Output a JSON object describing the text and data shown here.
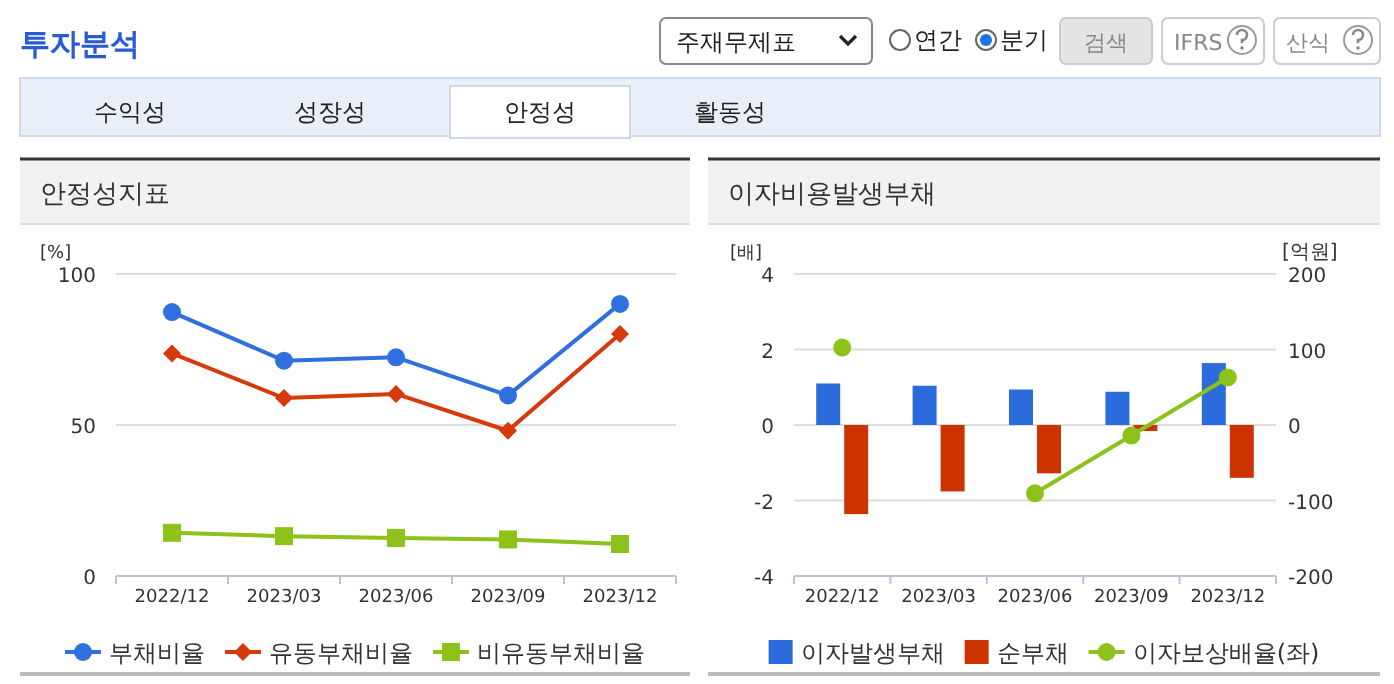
{
  "chart_data": [
    {
      "type": "other",
      "title": "투자분석",
      "annotations": [
        "주재무제표",
        "연간",
        "분기",
        "검색",
        "IFRS",
        "산식",
        "수익성",
        "성장성",
        "안정성",
        "활동성"
      ]
    },
    {
      "type": "line",
      "title": "안정성지표",
      "ylabel": "[%]",
      "categories": [
        "2022/12",
        "2023/03",
        "2023/06",
        "2023/09",
        "2023/12"
      ],
      "ylim": [
        0,
        100
      ],
      "yticks": [
        0,
        50,
        100
      ],
      "grid": "y",
      "legend": "bottom",
      "series": [
        {
          "name": "부채비율",
          "color": "#2f6fde",
          "marker": "circle",
          "values": [
            87.4,
            71.3,
            72.4,
            59.8,
            90.1
          ]
        },
        {
          "name": "유동부채비율",
          "color": "#d63a0a",
          "marker": "diamond",
          "values": [
            73.7,
            58.9,
            60.3,
            48.1,
            80.1
          ]
        },
        {
          "name": "비유동부채비율",
          "color": "#8cc21a",
          "marker": "square",
          "values": [
            14.3,
            13.2,
            12.6,
            12.1,
            10.6
          ]
        }
      ]
    },
    {
      "type": "bar",
      "title": "이자비용발생부채",
      "ylabel": "[배]",
      "y2label": "[억원]",
      "categories": [
        "2022/12",
        "2023/03",
        "2023/06",
        "2023/09",
        "2023/12"
      ],
      "ylim": [
        -4,
        4
      ],
      "yticks": [
        -4,
        -2,
        0,
        2,
        4
      ],
      "y2lim": [
        -200,
        200
      ],
      "y2ticks": [
        -200,
        -100,
        0,
        100,
        200
      ],
      "grid": "y",
      "legend": "bottom",
      "series": [
        {
          "name": "이자발생부채",
          "color": "#2b6bdc",
          "axis": "y2",
          "values": [
            55,
            52,
            47,
            44,
            82
          ]
        },
        {
          "name": "순부채",
          "color": "#cc3300",
          "axis": "y2",
          "values": [
            -118,
            -88,
            -64,
            -8,
            -70
          ]
        },
        {
          "name": "이자보상배율(좌)",
          "type": "line",
          "color": "#8cc21a",
          "marker": "circle",
          "values": [
            2.05,
            null,
            -1.81,
            -0.28,
            1.26
          ]
        }
      ]
    }
  ]
}
